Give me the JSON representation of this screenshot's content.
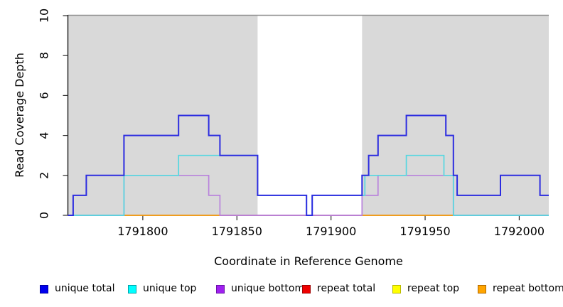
{
  "chart_data": {
    "type": "line",
    "step": true,
    "title": "",
    "xlabel": "Coordinate in Reference Genome",
    "ylabel": "Read Coverage Depth",
    "xlim": [
      1791760.2,
      1792015.7
    ],
    "ylim": [
      0,
      10
    ],
    "x_ticks": [
      1791800,
      1791850,
      1791900,
      1791950,
      1792000
    ],
    "y_ticks": [
      0,
      2,
      4,
      6,
      8,
      10
    ],
    "grid": false,
    "legend_position": "bottom",
    "panel_color": "#D9D9D9",
    "max_depth_line": 10,
    "max_line_color": "#8F8F8F",
    "shaded_regions": [
      [
        1791760.2,
        1791861
      ],
      [
        1791916.5,
        1792015.7
      ]
    ],
    "series": [
      {
        "name": "unique total",
        "legend_color": "#0000EE",
        "legend_border": "#0000A0",
        "line_color": "#2C2CE0",
        "width": 2,
        "steps": [
          [
            1791760.2,
            0
          ],
          [
            1791763,
            1
          ],
          [
            1791770,
            2
          ],
          [
            1791790,
            4
          ],
          [
            1791819,
            5
          ],
          [
            1791835,
            4
          ],
          [
            1791841,
            3
          ],
          [
            1791861,
            1
          ],
          [
            1791887,
            0
          ],
          [
            1791890,
            1
          ],
          [
            1791916.5,
            2
          ],
          [
            1791920,
            3
          ],
          [
            1791925,
            4
          ],
          [
            1791940,
            5
          ],
          [
            1791961,
            4
          ],
          [
            1791965,
            2
          ],
          [
            1791967,
            1
          ],
          [
            1791990,
            2
          ],
          [
            1792011,
            1
          ],
          [
            1792015.7,
            1
          ]
        ]
      },
      {
        "name": "unique top",
        "legend_color": "#00FFFF",
        "legend_border": "#00A0A8",
        "line_color": "#55D7E0",
        "width": 1.7,
        "steps": [
          [
            1791760.2,
            0
          ],
          [
            1791790,
            2
          ],
          [
            1791819,
            3
          ],
          [
            1791861,
            1
          ],
          [
            1791887,
            0
          ],
          [
            1791890,
            1
          ],
          [
            1791918,
            2
          ],
          [
            1791940,
            3
          ],
          [
            1791960,
            2
          ],
          [
            1791965,
            0
          ],
          [
            1792015.7,
            0
          ]
        ]
      },
      {
        "name": "unique bottom",
        "legend_color": "#A020F0",
        "legend_border": "#6A11A8",
        "line_color": "#B983DC",
        "width": 1.7,
        "steps": [
          [
            1791760.2,
            0
          ],
          [
            1791790,
            2
          ],
          [
            1791835,
            1
          ],
          [
            1791841,
            0
          ],
          [
            1791916.5,
            1
          ],
          [
            1791925,
            2
          ],
          [
            1791965,
            0
          ],
          [
            1792015.7,
            0
          ]
        ]
      },
      {
        "name": "repeat total",
        "legend_color": "#EE0000",
        "legend_border": "#A00000",
        "line_color": "#DB6287",
        "width": 1.7,
        "steps": [
          [
            1791760.2,
            0
          ],
          [
            1792015.7,
            0
          ]
        ]
      },
      {
        "name": "repeat top",
        "legend_color": "#FFFF00",
        "legend_border": "#B8B800",
        "line_color": "#FFFF00",
        "width": 1.7,
        "steps": [
          [
            1791760.2,
            0
          ],
          [
            1792015.7,
            0
          ]
        ]
      },
      {
        "name": "repeat bottom",
        "legend_color": "#FFA500",
        "legend_border": "#B06800",
        "line_color": "#FFA110",
        "width": 1.7,
        "steps": [
          [
            1791760.2,
            0
          ],
          [
            1792015.7,
            0
          ]
        ]
      }
    ],
    "baseline_segments": [
      {
        "from": 1791760.2,
        "to": 1791790,
        "color": "#7FBF8F"
      },
      {
        "from": 1791790,
        "to": 1791841,
        "color": "#FFA110"
      },
      {
        "from": 1791841,
        "to": 1791916.5,
        "color": "#DB6287"
      },
      {
        "from": 1791916.5,
        "to": 1791965,
        "color": "#FFA110"
      },
      {
        "from": 1791965,
        "to": 1792015.7,
        "color": "#DB6287"
      }
    ],
    "legend": [
      {
        "label": "unique total"
      },
      {
        "label": "unique top"
      },
      {
        "label": "unique bottom"
      },
      {
        "label": "repeat total"
      },
      {
        "label": "repeat top"
      },
      {
        "label": "repeat bottom"
      }
    ]
  }
}
